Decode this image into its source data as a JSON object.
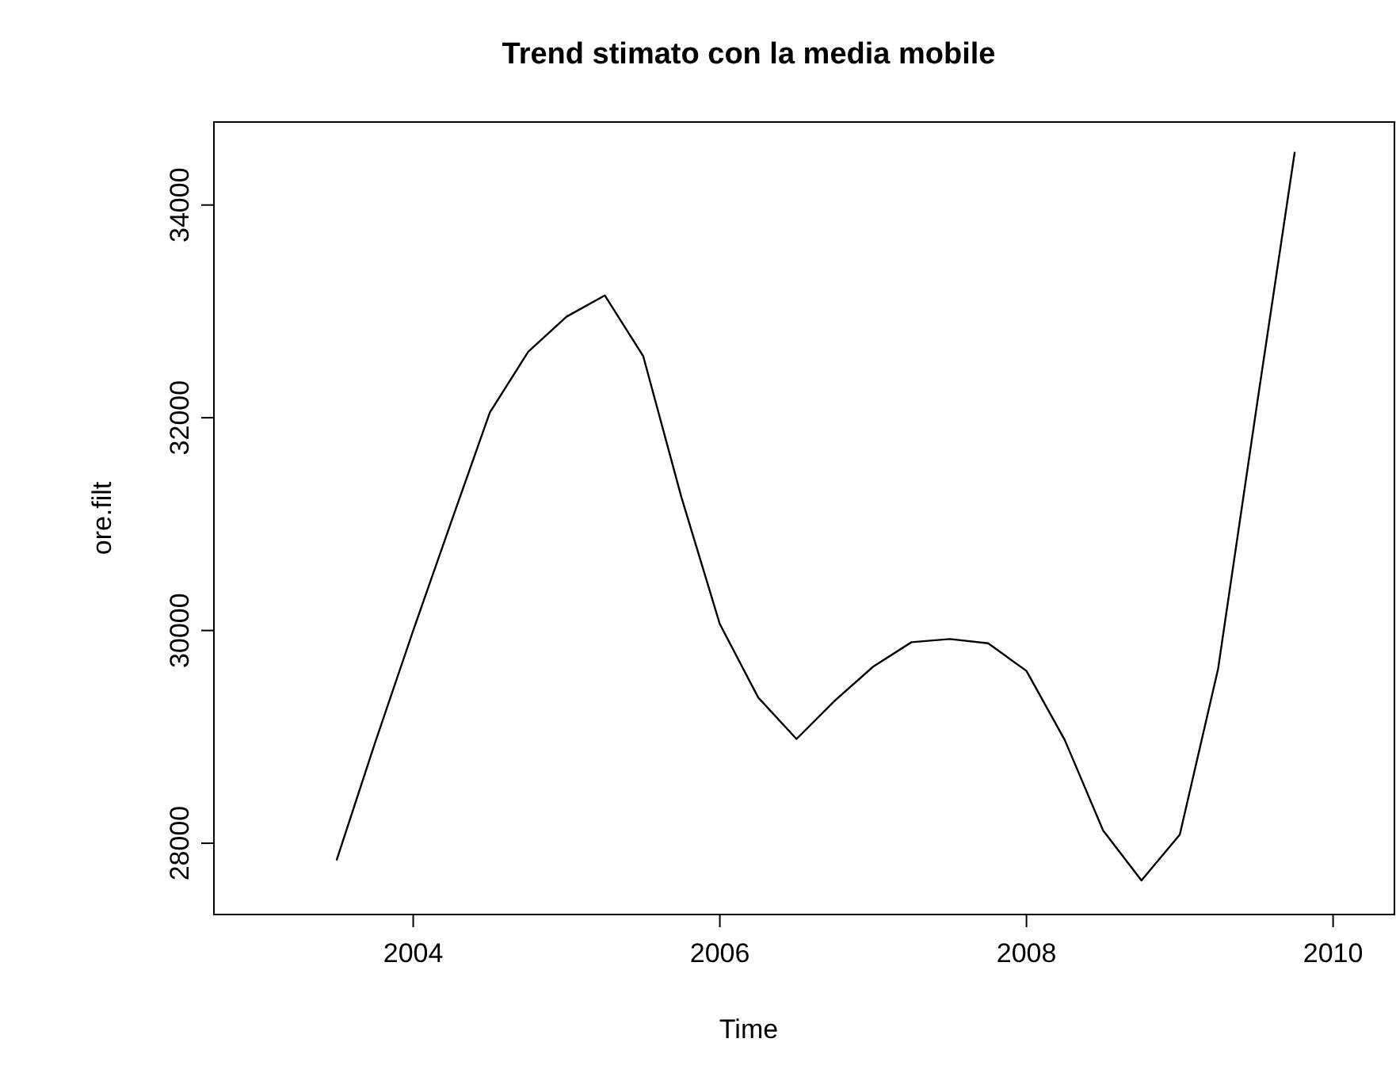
{
  "chart_data": {
    "type": "line",
    "title": "Trend stimato con la media mobile",
    "xlabel": "Time",
    "ylabel": "ore.filt",
    "x": [
      2003.5,
      2003.75,
      2004,
      2004.25,
      2004.5,
      2004.75,
      2005,
      2005.25,
      2005.5,
      2005.75,
      2006,
      2006.25,
      2006.5,
      2006.75,
      2007,
      2007.25,
      2007.5,
      2007.75,
      2008,
      2008.25,
      2008.5,
      2008.75,
      2009,
      2009.25,
      2009.5,
      2009.75
    ],
    "series": [
      {
        "color": "#000000",
        "values": [
          27840,
          28940,
          30000,
          31030,
          32050,
          32620,
          32950,
          33150,
          32580,
          31250,
          30060,
          29370,
          28980,
          29340,
          29660,
          29890,
          29920,
          29880,
          29620,
          28970,
          28120,
          27650,
          28080,
          29640,
          32090,
          34500
        ]
      }
    ],
    "xlim": [
      2002.7,
      2010.4
    ],
    "ylim": [
      27330,
      34780
    ],
    "xticks": [
      2004,
      2006,
      2008,
      2010
    ],
    "yticks": [
      28000,
      30000,
      32000,
      34000
    ],
    "grid": false,
    "marker": "none",
    "line_style": "solid"
  }
}
